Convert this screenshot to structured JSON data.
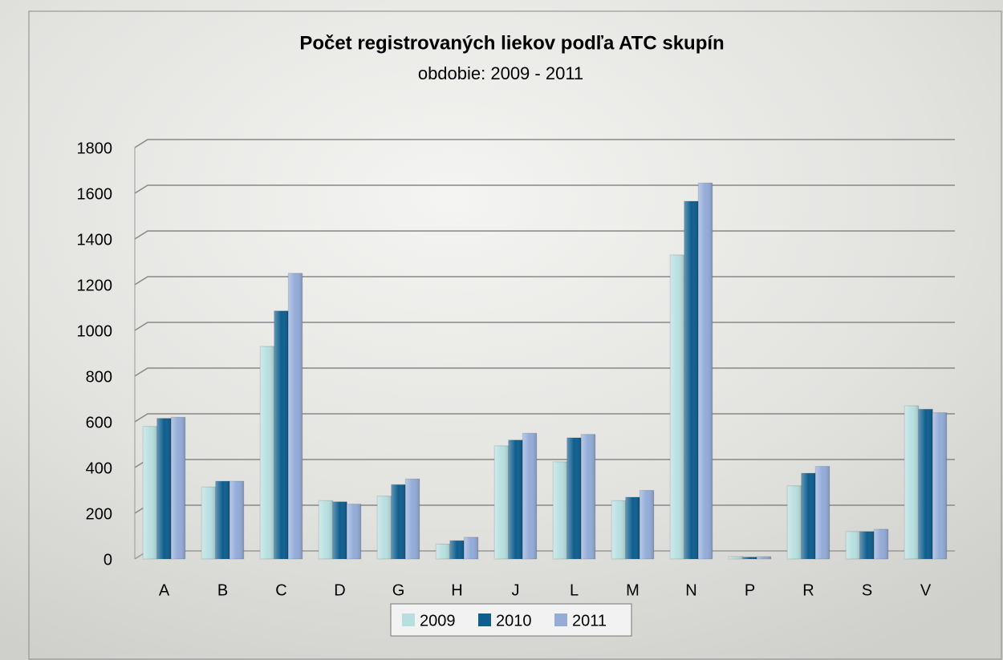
{
  "chart_data": {
    "type": "bar",
    "title": "Počet registrovaných liekov podľa ATC skupín",
    "subtitle": "obdobie: 2009 - 2011",
    "categories": [
      "A",
      "B",
      "C",
      "D",
      "G",
      "H",
      "J",
      "L",
      "M",
      "N",
      "P",
      "R",
      "S",
      "V"
    ],
    "series": [
      {
        "name": "2009",
        "color": "#b8dfe0",
        "values": [
          580,
          315,
          930,
          255,
          275,
          65,
          495,
          425,
          255,
          1330,
          10,
          320,
          120,
          670
        ]
      },
      {
        "name": "2010",
        "color": "#0f5e8e",
        "values": [
          615,
          340,
          1085,
          250,
          325,
          80,
          520,
          530,
          270,
          1565,
          8,
          375,
          120,
          655
        ]
      },
      {
        "name": "2011",
        "color": "#93acd8",
        "values": [
          620,
          340,
          1250,
          240,
          350,
          95,
          550,
          545,
          300,
          1645,
          10,
          405,
          130,
          640
        ]
      }
    ],
    "ylim": [
      0,
      1800
    ],
    "yticks": [
      0,
      200,
      400,
      600,
      800,
      1000,
      1200,
      1400,
      1600,
      1800
    ],
    "grid": true,
    "legend": "bottom"
  }
}
